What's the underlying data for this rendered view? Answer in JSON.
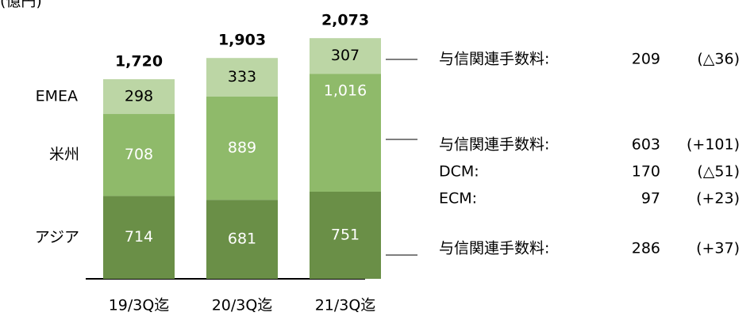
{
  "chart_data": {
    "type": "stacked_bar",
    "unit": "(億円)",
    "categories": [
      "19/3Q迄",
      "20/3Q迄",
      "21/3Q迄"
    ],
    "series": [
      {
        "name": "アジア",
        "color": "#6a8f47",
        "label_color": "#ffffff",
        "values": [
          714,
          681,
          751
        ]
      },
      {
        "name": "米州",
        "color": "#8fba6a",
        "label_color": "#ffffff",
        "values": [
          708,
          889,
          1016
        ],
        "value_labels": [
          "708",
          "889",
          "1,016"
        ]
      },
      {
        "name": "EMEA",
        "color": "#bcd6a5",
        "label_color": "#000000",
        "values": [
          298,
          333,
          307
        ]
      }
    ],
    "totals": {
      "values": [
        1720,
        1903,
        2073
      ],
      "value_labels": [
        "1,720",
        "1,903",
        "2,073"
      ]
    },
    "annotations": [
      {
        "series": 2,
        "rows": [
          {
            "label": "与信関連手数料:",
            "value": 209,
            "change": "(△36)"
          }
        ]
      },
      {
        "series": 1,
        "rows": [
          {
            "label": "与信関連手数料:",
            "value": 603,
            "change": "(+101)"
          },
          {
            "label": "DCM:",
            "value": 170,
            "change": "(△51)"
          },
          {
            "label": "ECM:",
            "value": 97,
            "change": "(+23)"
          }
        ]
      },
      {
        "series": 0,
        "rows": [
          {
            "label": "与信関連手数料:",
            "value": 286,
            "change": "(+37)"
          }
        ]
      }
    ]
  }
}
